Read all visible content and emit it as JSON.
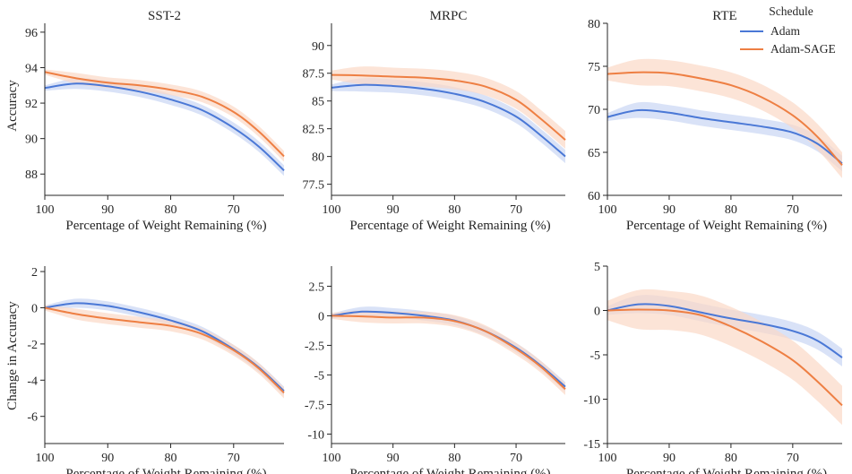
{
  "colors": {
    "adam": "#4a78d6",
    "adam_sage": "#ee7f43",
    "adam_band": "#c9d6f3",
    "adam_sage_band": "#fbd9c6",
    "axis": "#262626"
  },
  "legend": {
    "title": "Schedule",
    "items": [
      "Adam",
      "Adam-SAGE"
    ],
    "placement": "top-right (inside RTE accuracy panel)"
  },
  "labels": {
    "xlabel": "Percentage of Weight Remaining (%)",
    "ylabel_top": "Accuracy",
    "ylabel_bottom": "Change in Accuracy"
  },
  "chart_data": [
    {
      "type": "line",
      "title": "SST-2",
      "xlabel": "Percentage of Weight Remaining (%)",
      "ylabel": "Accuracy",
      "xlim": [
        100,
        62
      ],
      "ylim": [
        86.8,
        96.5
      ],
      "x_reversed": true,
      "grid": false,
      "xticks": [
        100,
        90,
        80,
        70
      ],
      "yticks": [
        88,
        90,
        92,
        94,
        96
      ],
      "x": [
        100,
        95,
        90,
        85,
        80,
        75,
        70,
        66,
        62
      ],
      "series": [
        {
          "name": "Adam",
          "values": [
            92.85,
            93.1,
            92.95,
            92.65,
            92.2,
            91.6,
            90.6,
            89.55,
            88.2
          ],
          "band": 0.3
        },
        {
          "name": "Adam-SAGE",
          "values": [
            93.75,
            93.4,
            93.15,
            93.0,
            92.75,
            92.35,
            91.5,
            90.4,
            89.0
          ],
          "band": 0.3
        }
      ]
    },
    {
      "type": "line",
      "title": "MRPC",
      "xlabel": "Percentage of Weight Remaining (%)",
      "ylabel": "",
      "xlim": [
        100,
        62
      ],
      "ylim": [
        76.5,
        92
      ],
      "x_reversed": true,
      "grid": false,
      "xticks": [
        100,
        90,
        80,
        70
      ],
      "yticks": [
        77.5,
        80.0,
        82.5,
        85.0,
        87.5,
        90.0
      ],
      "x": [
        100,
        95,
        90,
        85,
        80,
        75,
        70,
        66,
        62
      ],
      "series": [
        {
          "name": "Adam",
          "values": [
            86.2,
            86.45,
            86.35,
            86.1,
            85.65,
            84.9,
            83.6,
            81.9,
            80.0
          ],
          "band": 0.6
        },
        {
          "name": "Adam-SAGE",
          "values": [
            87.35,
            87.3,
            87.2,
            87.1,
            86.85,
            86.3,
            85.1,
            83.4,
            81.5
          ],
          "band": 0.8
        }
      ]
    },
    {
      "type": "line",
      "title": "RTE",
      "xlabel": "Percentage of Weight Remaining (%)",
      "ylabel": "",
      "xlim": [
        100,
        62
      ],
      "ylim": [
        60,
        80
      ],
      "x_reversed": true,
      "grid": false,
      "xticks": [
        100,
        90,
        80,
        70
      ],
      "yticks": [
        60,
        65,
        70,
        75,
        80
      ],
      "x": [
        100,
        95,
        90,
        85,
        80,
        75,
        70,
        66,
        62
      ],
      "series": [
        {
          "name": "Adam",
          "values": [
            69.1,
            69.9,
            69.6,
            69.0,
            68.5,
            68.0,
            67.3,
            66.0,
            63.7
          ],
          "band": 0.9
        },
        {
          "name": "Adam-SAGE",
          "values": [
            74.1,
            74.3,
            74.2,
            73.6,
            72.8,
            71.4,
            69.3,
            66.8,
            63.5
          ],
          "band": 1.5
        }
      ]
    },
    {
      "type": "line",
      "title": "",
      "xlabel": "Percentage of Weight Remaining (%)",
      "ylabel": "Change in Accuracy",
      "xlim": [
        100,
        62
      ],
      "ylim": [
        -7.5,
        2.3
      ],
      "x_reversed": true,
      "grid": false,
      "xticks": [
        100,
        90,
        80,
        70
      ],
      "yticks": [
        -6,
        -4,
        -2,
        0,
        2
      ],
      "x": [
        100,
        95,
        90,
        85,
        80,
        75,
        70,
        66,
        62
      ],
      "series": [
        {
          "name": "Adam",
          "values": [
            0.0,
            0.25,
            0.1,
            -0.25,
            -0.7,
            -1.3,
            -2.3,
            -3.3,
            -4.6
          ],
          "band": 0.25
        },
        {
          "name": "Adam-SAGE",
          "values": [
            0.0,
            -0.35,
            -0.6,
            -0.8,
            -1.0,
            -1.45,
            -2.35,
            -3.35,
            -4.7
          ],
          "band": 0.3
        }
      ]
    },
    {
      "type": "line",
      "title": "",
      "xlabel": "Percentage of Weight Remaining (%)",
      "ylabel": "",
      "xlim": [
        100,
        62
      ],
      "ylim": [
        -10.8,
        4.2
      ],
      "x_reversed": true,
      "grid": false,
      "xticks": [
        100,
        90,
        80,
        70
      ],
      "yticks": [
        -10.0,
        -7.5,
        -5.0,
        -2.5,
        0.0,
        2.5
      ],
      "x": [
        100,
        95,
        90,
        85,
        80,
        75,
        70,
        66,
        62
      ],
      "series": [
        {
          "name": "Adam",
          "values": [
            0.0,
            0.35,
            0.25,
            0.0,
            -0.4,
            -1.3,
            -2.7,
            -4.2,
            -6.0
          ],
          "band": 0.4
        },
        {
          "name": "Adam-SAGE",
          "values": [
            0.0,
            -0.05,
            -0.15,
            -0.15,
            -0.45,
            -1.3,
            -2.8,
            -4.3,
            -6.2
          ],
          "band": 0.5
        }
      ]
    },
    {
      "type": "line",
      "title": "",
      "xlabel": "Percentage of Weight Remaining (%)",
      "ylabel": "",
      "xlim": [
        100,
        62
      ],
      "ylim": [
        -15,
        5
      ],
      "x_reversed": true,
      "grid": false,
      "xticks": [
        100,
        90,
        80,
        70
      ],
      "yticks": [
        -15,
        -10,
        -5,
        0,
        5
      ],
      "x": [
        100,
        95,
        90,
        85,
        80,
        75,
        70,
        66,
        62
      ],
      "series": [
        {
          "name": "Adam",
          "values": [
            0.0,
            0.7,
            0.5,
            -0.2,
            -0.9,
            -1.5,
            -2.3,
            -3.4,
            -5.3
          ],
          "band": 1.0
        },
        {
          "name": "Adam-SAGE",
          "values": [
            0.0,
            0.1,
            0.0,
            -0.5,
            -1.8,
            -3.5,
            -5.6,
            -8.0,
            -10.7
          ],
          "band": 2.2
        }
      ]
    }
  ]
}
